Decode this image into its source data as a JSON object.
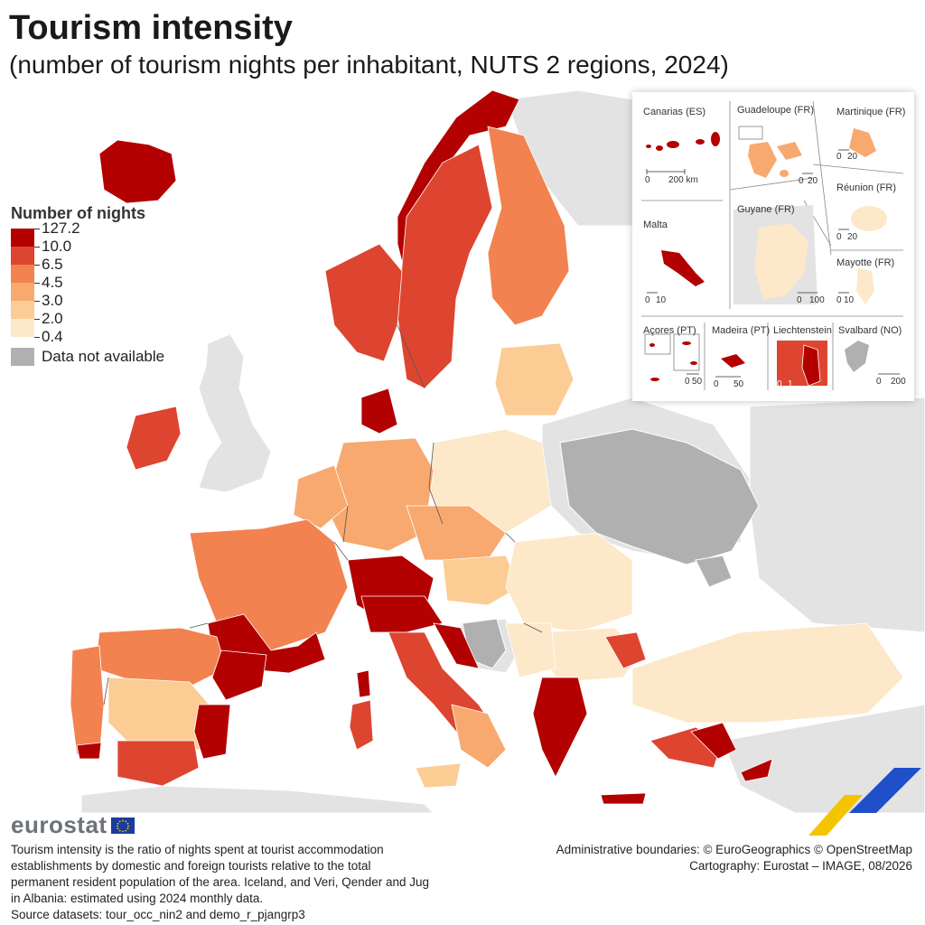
{
  "title": "Tourism intensity",
  "subtitle": "(number of tourism nights per inhabitant, NUTS 2 regions, 2024)",
  "legend": {
    "title": "Number of nights",
    "breaks": [
      "127.2",
      "10.0",
      "6.5",
      "4.5",
      "3.0",
      "2.0",
      "0.4"
    ],
    "colors": [
      "#b30000",
      "#dd4530",
      "#f2824f",
      "#f7a96f",
      "#fbcc94",
      "#fde8c9"
    ],
    "not_available_label": "Data not available",
    "not_available_color": "#b0b0b0"
  },
  "colors": {
    "non_eu_land": "#e3e3e3",
    "sea": "#ffffff",
    "borders": "#555555"
  },
  "insets": {
    "canarias": {
      "label": "Canarias (ES)",
      "scale": [
        "0",
        "200 km"
      ]
    },
    "guadeloupe": {
      "label": "Guadeloupe (FR)",
      "scale": [
        "0",
        "20"
      ]
    },
    "martinique": {
      "label": "Martinique (FR)",
      "scale": [
        "0",
        "20"
      ]
    },
    "reunion": {
      "label": "Réunion (FR)",
      "scale": [
        "0",
        "20"
      ]
    },
    "guyane": {
      "label": "Guyane (FR)",
      "scale": [
        "0",
        "100"
      ]
    },
    "mayotte": {
      "label": "Mayotte (FR)",
      "scale": [
        "0",
        "10"
      ]
    },
    "malta": {
      "label": "Malta",
      "scale": [
        "0",
        "10"
      ]
    },
    "acores": {
      "label": "Açores (PT)",
      "scale": [
        "0",
        "50"
      ]
    },
    "madeira": {
      "label": "Madeira (PT)",
      "scale": [
        "0",
        "50"
      ]
    },
    "liechtenstein": {
      "label": "Liechtenstein",
      "scale": [
        "0",
        "1"
      ]
    },
    "svalbard": {
      "label": "Svalbard (NO)",
      "scale": [
        "0",
        "200"
      ]
    }
  },
  "logo": "eurostat",
  "note": [
    "Tourism intensity is the ratio of nights spent at tourist accommodation",
    "establishments by domestic and foreign tourists relative to the total",
    "permanent resident population of the area. Iceland, and Veri, Qender and Jug",
    "in Albania: estimated using 2024 monthly data.",
    "Source datasets: tour_occ_nin2 and demo_r_pjangrp3"
  ],
  "credits": [
    "Administrative boundaries: © EuroGeographics © OpenStreetMap",
    "Cartography: Eurostat – IMAGE, 08/2026"
  ]
}
